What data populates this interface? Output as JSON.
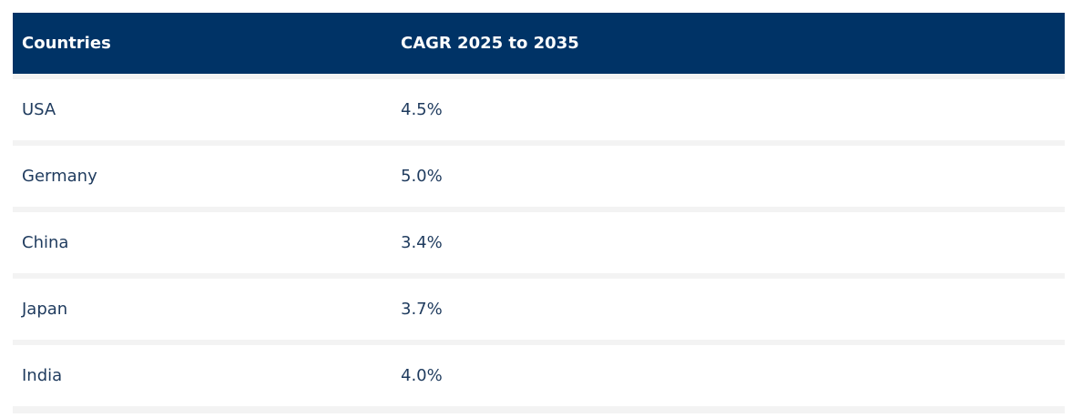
{
  "table": {
    "headers": {
      "country": "Countries",
      "cagr": "CAGR 2025 to 2035"
    },
    "rows": [
      {
        "country": "USA",
        "cagr": "4.5%"
      },
      {
        "country": "Germany",
        "cagr": "5.0%"
      },
      {
        "country": "China",
        "cagr": "3.4%"
      },
      {
        "country": "Japan",
        "cagr": "3.7%"
      },
      {
        "country": "India",
        "cagr": "4.0%"
      }
    ]
  },
  "colors": {
    "header_bg": "#003366",
    "header_text": "#ffffff",
    "cell_text": "#1f3b5e",
    "row_gap": "#f3f3f3"
  }
}
